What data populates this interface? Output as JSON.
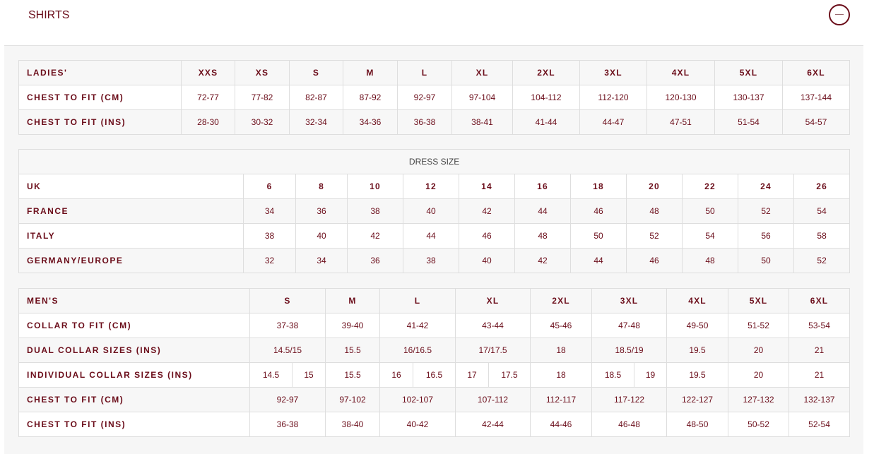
{
  "section": {
    "title": "SHIRTS",
    "toggle_icon": "minus-circle-icon"
  },
  "colors": {
    "text": "#6b0d1a",
    "header_bg": "#f7f7f7",
    "border": "#dedede"
  },
  "ladies": {
    "header": [
      "LADIES'",
      "XXS",
      "XS",
      "S",
      "M",
      "L",
      "XL",
      "2XL",
      "3XL",
      "4XL",
      "5XL",
      "6XL"
    ],
    "rows": [
      [
        "CHEST TO FIT (CM)",
        "72-77",
        "77-82",
        "82-87",
        "87-92",
        "92-97",
        "97-104",
        "104-112",
        "112-120",
        "120-130",
        "130-137",
        "137-144"
      ],
      [
        "CHEST TO FIT (INS)",
        "28-30",
        "30-32",
        "32-34",
        "34-36",
        "36-38",
        "38-41",
        "41-44",
        "44-47",
        "47-51",
        "51-54",
        "54-57"
      ]
    ]
  },
  "dress": {
    "title": "DRESS SIZE",
    "header": [
      "UK",
      "6",
      "8",
      "10",
      "12",
      "14",
      "16",
      "18",
      "20",
      "22",
      "24",
      "26"
    ],
    "rows": [
      [
        "FRANCE",
        "34",
        "36",
        "38",
        "40",
        "42",
        "44",
        "46",
        "48",
        "50",
        "52",
        "54"
      ],
      [
        "ITALY",
        "38",
        "40",
        "42",
        "44",
        "46",
        "48",
        "50",
        "52",
        "54",
        "56",
        "58"
      ],
      [
        "GERMANY/EUROPE",
        "32",
        "34",
        "36",
        "38",
        "40",
        "42",
        "44",
        "46",
        "48",
        "50",
        "52"
      ]
    ]
  },
  "men": {
    "header": [
      "MEN'S",
      "S",
      "M",
      "L",
      "XL",
      "2XL",
      "3XL",
      "4XL",
      "5XL",
      "6XL"
    ],
    "rows": [
      [
        "COLLAR TO FIT (CM)",
        "37-38",
        "39-40",
        "41-42",
        "43-44",
        "45-46",
        "47-48",
        "49-50",
        "51-52",
        "53-54"
      ],
      [
        "DUAL COLLAR SIZES (INS)",
        "14.5/15",
        "15.5",
        "16/16.5",
        "17/17.5",
        "18",
        "18.5/19",
        "19.5",
        "20",
        "21"
      ],
      [
        "INDIVIDUAL COLLAR SIZES (INS)",
        [
          "14.5",
          "15"
        ],
        "15.5",
        [
          "16",
          "16.5"
        ],
        [
          "17",
          "17.5"
        ],
        "18",
        [
          "18.5",
          "19"
        ],
        "19.5",
        "20",
        "21"
      ],
      [
        "CHEST TO FIT (CM)",
        "92-97",
        "97-102",
        "102-107",
        "107-112",
        "112-117",
        "117-122",
        "122-127",
        "127-132",
        "132-137"
      ],
      [
        "CHEST TO FIT (INS)",
        "36-38",
        "38-40",
        "40-42",
        "42-44",
        "44-46",
        "46-48",
        "48-50",
        "50-52",
        "52-54"
      ]
    ]
  }
}
